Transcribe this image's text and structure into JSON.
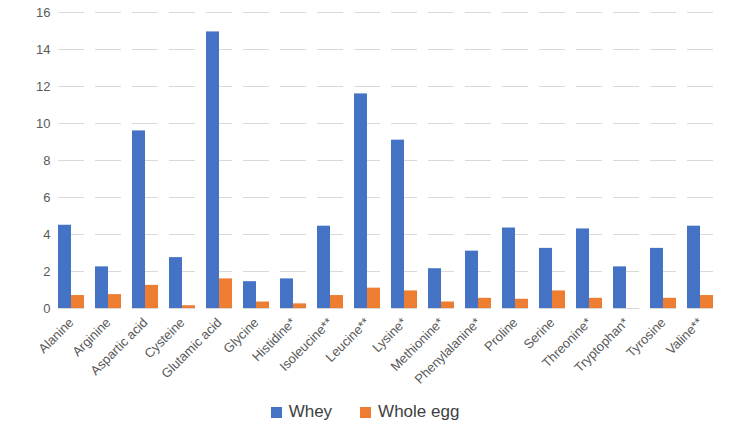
{
  "chart_data": {
    "type": "bar",
    "categories": [
      "Alanine",
      "Arginine",
      "Aspartic acid",
      "Cysteine",
      "Glutamic acid",
      "Glycine",
      "Histidine*",
      "Isoleucine**",
      "Leucine**",
      "Lysine*",
      "Methionine*",
      "Phenylalanine*",
      "Proline",
      "Serine",
      "Threonine*",
      "Tryptophan*",
      "Tyrosine",
      "Valine**"
    ],
    "series": [
      {
        "name": "Whey",
        "color": "#4472c4",
        "values": [
          4.5,
          2.25,
          9.6,
          2.75,
          14.95,
          1.45,
          1.6,
          4.45,
          11.6,
          9.1,
          2.15,
          3.1,
          4.35,
          3.25,
          4.3,
          2.25,
          3.25,
          4.45
        ]
      },
      {
        "name": "Whole egg",
        "color": "#ed7d31",
        "values": [
          0.7,
          0.75,
          1.25,
          0.15,
          1.6,
          0.35,
          0.25,
          0.7,
          1.1,
          0.95,
          0.35,
          0.55,
          0.5,
          0.95,
          0.55,
          0,
          0.55,
          0.7
        ]
      }
    ],
    "ylim": [
      0,
      16
    ],
    "yticks": [
      0,
      2,
      4,
      6,
      8,
      10,
      12,
      14,
      16
    ],
    "grid": true,
    "legend": "bottom"
  }
}
